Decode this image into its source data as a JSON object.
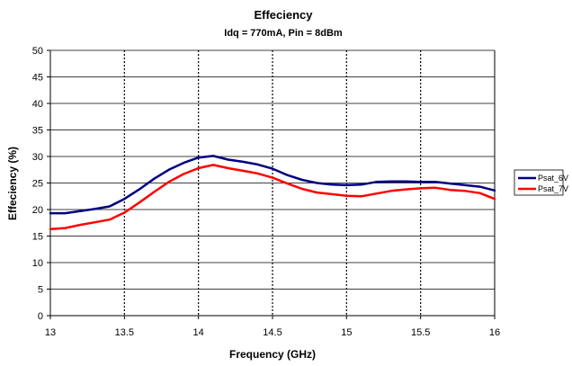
{
  "chart_data": {
    "type": "line",
    "title": "Effeciency",
    "subtitle": "Idq = 770mA, Pin = 8dBm",
    "xlabel": "Frequency (GHz)",
    "ylabel": "Effeciency (%)",
    "xlim": [
      13,
      16
    ],
    "ylim": [
      0,
      50
    ],
    "xticks": [
      13,
      13.5,
      14,
      14.5,
      15,
      15.5,
      16
    ],
    "xtick_labels": [
      "13",
      "13.5",
      "14",
      "14.5",
      "15",
      "15.5",
      "16"
    ],
    "yticks": [
      0,
      5,
      10,
      15,
      20,
      25,
      30,
      35,
      40,
      45,
      50
    ],
    "ytick_labels": [
      "0",
      "5",
      "10",
      "15",
      "20",
      "25",
      "30",
      "35",
      "40",
      "45",
      "50"
    ],
    "grid": {
      "vertical": "dotted",
      "horizontal": "solid"
    },
    "legend_position": "right",
    "series": [
      {
        "name": "Psat_6V",
        "color": "#000080",
        "x": [
          13.0,
          13.1,
          13.2,
          13.3,
          13.4,
          13.5,
          13.6,
          13.7,
          13.8,
          13.9,
          14.0,
          14.1,
          14.2,
          14.3,
          14.4,
          14.5,
          14.6,
          14.7,
          14.8,
          14.9,
          15.0,
          15.1,
          15.2,
          15.3,
          15.4,
          15.5,
          15.6,
          15.7,
          15.8,
          15.9,
          16.0
        ],
        "y": [
          19.3,
          19.3,
          19.7,
          20.1,
          20.6,
          22.0,
          23.8,
          25.8,
          27.5,
          28.8,
          29.8,
          30.1,
          29.4,
          29.0,
          28.5,
          27.7,
          26.5,
          25.6,
          25.0,
          24.7,
          24.6,
          24.7,
          25.2,
          25.3,
          25.3,
          25.2,
          25.2,
          24.9,
          24.6,
          24.3,
          23.6
        ]
      },
      {
        "name": "Psat_7V",
        "color": "#ff0000",
        "x": [
          13.0,
          13.1,
          13.2,
          13.3,
          13.4,
          13.5,
          13.6,
          13.7,
          13.8,
          13.9,
          14.0,
          14.1,
          14.2,
          14.3,
          14.4,
          14.5,
          14.6,
          14.7,
          14.8,
          14.9,
          15.0,
          15.1,
          15.2,
          15.3,
          15.4,
          15.5,
          15.6,
          15.7,
          15.8,
          15.9,
          16.0
        ],
        "y": [
          16.3,
          16.5,
          17.1,
          17.6,
          18.1,
          19.4,
          21.3,
          23.3,
          25.2,
          26.7,
          27.8,
          28.4,
          27.8,
          27.3,
          26.8,
          26.0,
          24.9,
          23.9,
          23.2,
          22.9,
          22.6,
          22.5,
          23.0,
          23.5,
          23.8,
          24.0,
          24.1,
          23.7,
          23.5,
          23.1,
          22.0
        ]
      }
    ]
  }
}
